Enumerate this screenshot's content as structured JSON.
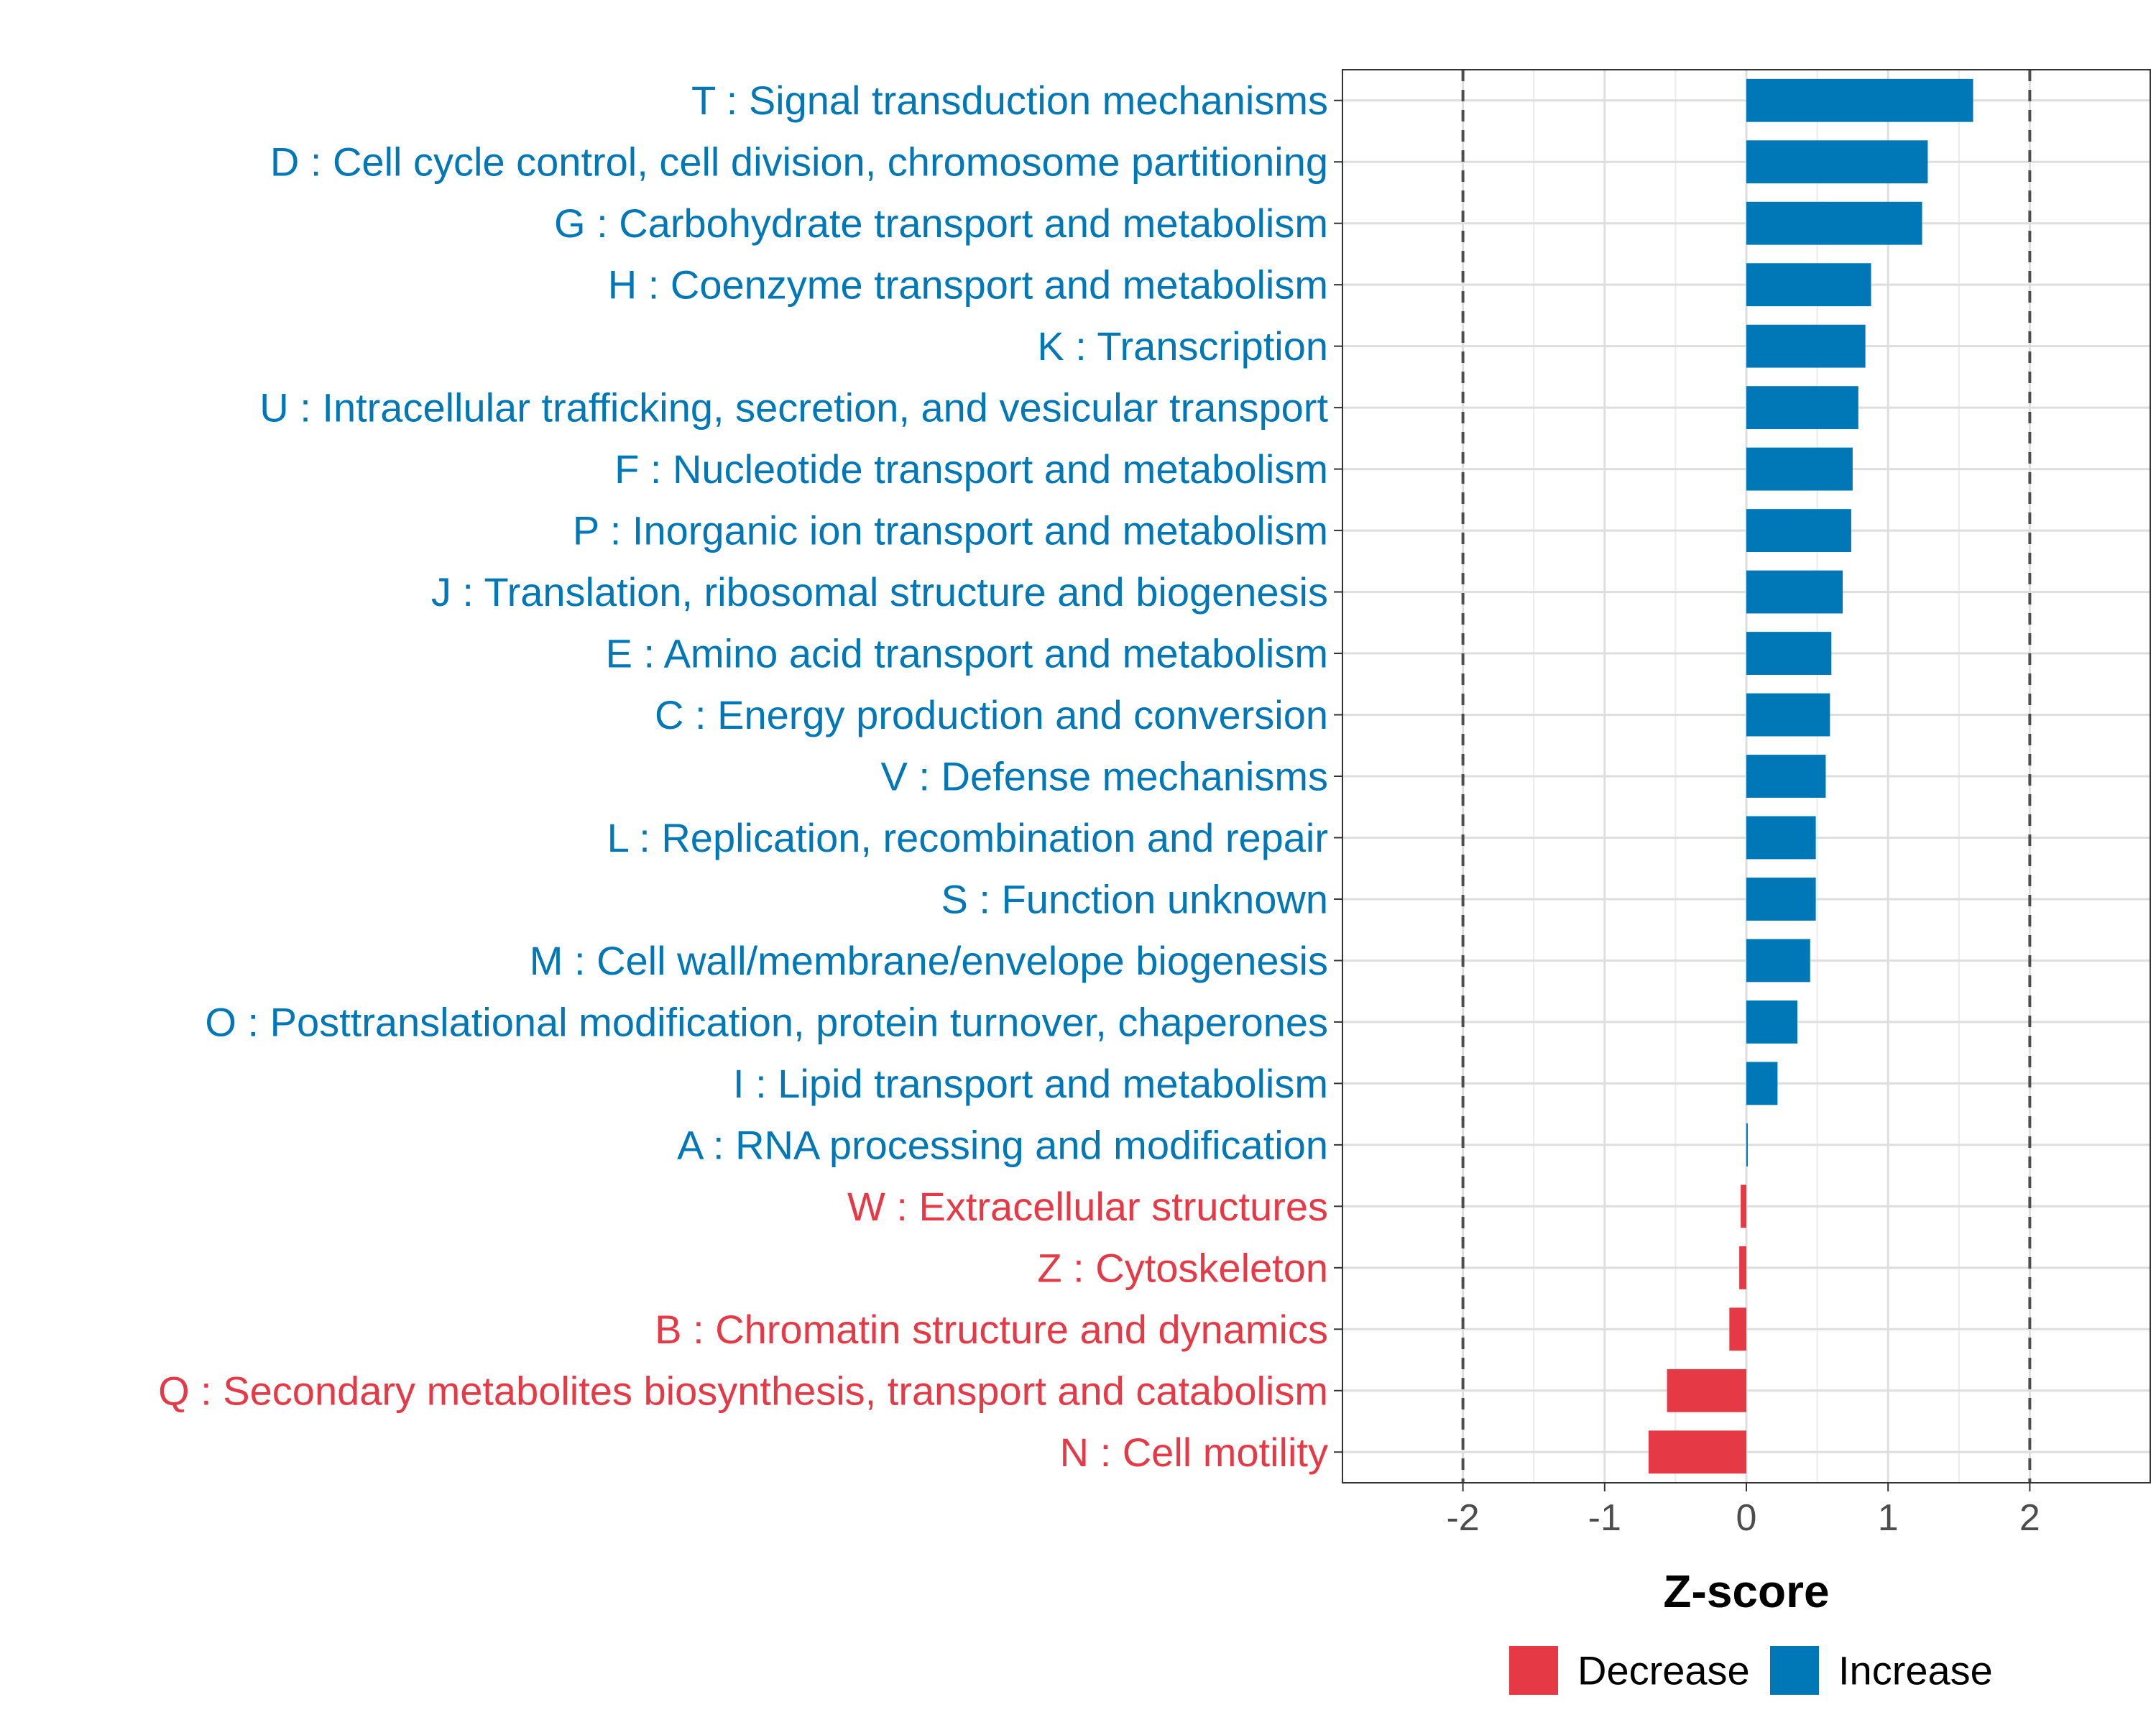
{
  "chart_data": {
    "type": "bar",
    "orientation": "horizontal",
    "xlabel": "Z-score",
    "xlim": [
      -2.85,
      2.85
    ],
    "x_ticks": [
      -2,
      -1,
      0,
      1,
      2
    ],
    "x_tick_labels": [
      "-2",
      "-1",
      "0",
      "1",
      "2"
    ],
    "reference_lines": [
      -2,
      2
    ],
    "grid": true,
    "categories": [
      "T : Signal transduction mechanisms",
      "D : Cell cycle control, cell division, chromosome partitioning",
      "G : Carbohydrate transport and metabolism",
      "H : Coenzyme transport and metabolism",
      "K : Transcription",
      "U : Intracellular trafficking, secretion, and vesicular transport",
      "F : Nucleotide transport and metabolism",
      "P : Inorganic ion transport and metabolism",
      "J : Translation, ribosomal structure and biogenesis",
      "E : Amino acid transport and metabolism",
      "C : Energy production and conversion",
      "V : Defense mechanisms",
      "L : Replication, recombination and repair",
      "S : Function unknown",
      "M : Cell wall/membrane/envelope biogenesis",
      "O : Posttranslational modification, protein turnover, chaperones",
      "I : Lipid transport and metabolism",
      "A : RNA processing and modification",
      "W : Extracellular structures",
      "Z : Cytoskeleton",
      "B : Chromatin structure and dynamics",
      "Q : Secondary metabolites biosynthesis, transport and catabolism",
      "N : Cell motility"
    ],
    "values": [
      1.6,
      1.28,
      1.24,
      0.88,
      0.84,
      0.79,
      0.75,
      0.74,
      0.68,
      0.6,
      0.59,
      0.56,
      0.49,
      0.49,
      0.45,
      0.36,
      0.22,
      0.01,
      -0.04,
      -0.05,
      -0.12,
      -0.56,
      -0.69
    ],
    "groups": [
      "Increase",
      "Increase",
      "Increase",
      "Increase",
      "Increase",
      "Increase",
      "Increase",
      "Increase",
      "Increase",
      "Increase",
      "Increase",
      "Increase",
      "Increase",
      "Increase",
      "Increase",
      "Increase",
      "Increase",
      "Increase",
      "Decrease",
      "Decrease",
      "Decrease",
      "Decrease",
      "Decrease"
    ],
    "legend": [
      {
        "label": "Decrease",
        "color": "#E63946"
      },
      {
        "label": "Increase",
        "color": "#0077B6"
      }
    ],
    "legend_position": "bottom"
  }
}
